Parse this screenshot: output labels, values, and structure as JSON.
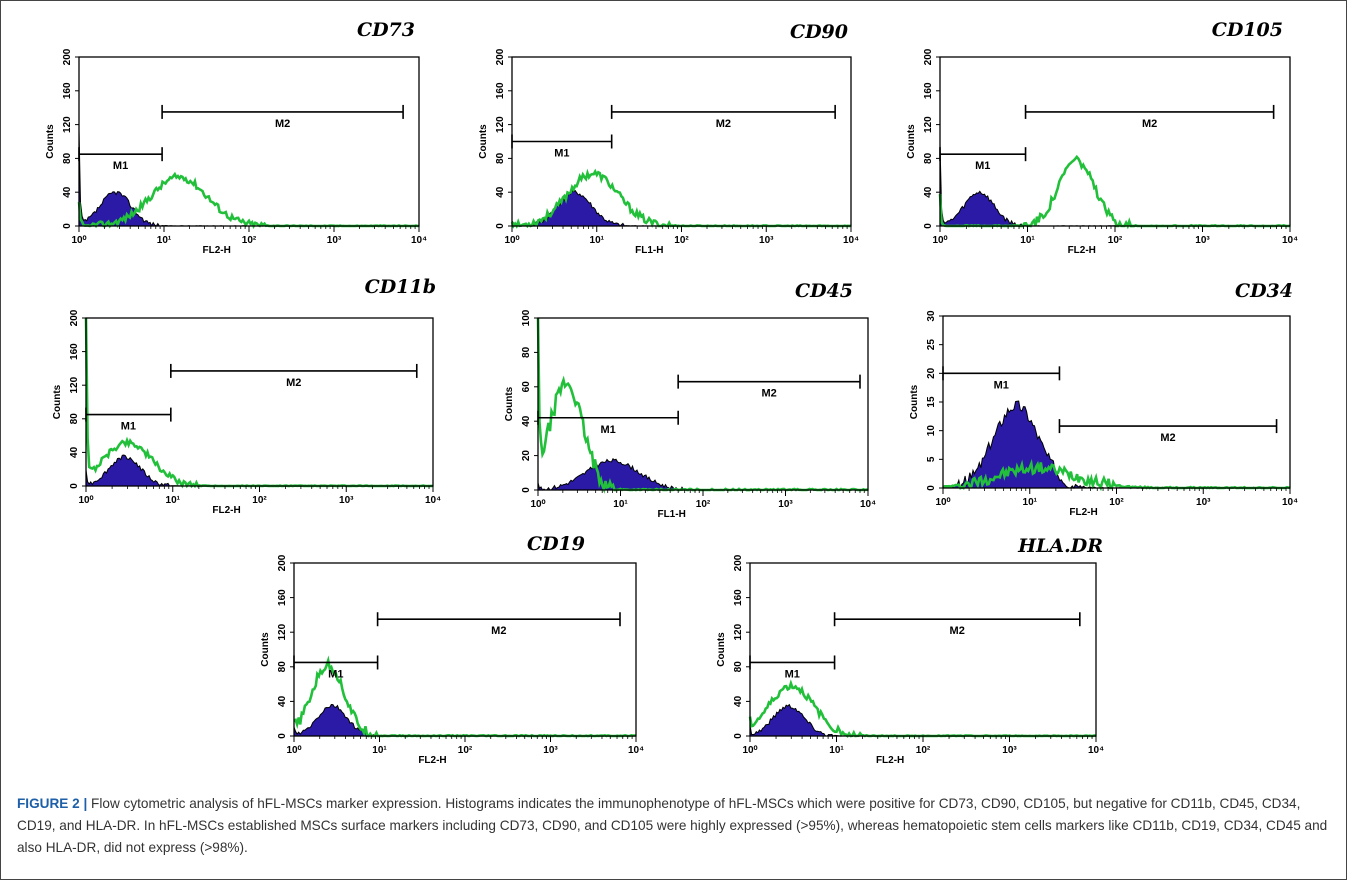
{
  "caption": {
    "label": "FIGURE 2 |",
    "text": " Flow cytometric analysis of hFL-MSCs marker expression. Histograms indicates the immunophenotype of hFL-MSCs which were positive for CD73, CD90, CD105, but negative for CD11b, CD45, CD34, CD19, and HLA-DR. In hFL-MSCs established MSCs surface markers including CD73, CD90, and CD105 were highly expressed (>95%), whereas hematopoietic stem cells markers like CD11b, CD19, CD34, CD45 and also HLA-DR, did not express (>98%)."
  },
  "colors": {
    "control_fill": "#2a1aa6",
    "stain_line": "#22c03a",
    "axis": "#000000"
  },
  "chart_data": [
    {
      "type": "area",
      "title": "CD73",
      "xlabel": "FL2-H",
      "ylabel": "Counts",
      "xscale": "log",
      "xlim": [
        1,
        10000
      ],
      "ylim": [
        0,
        200
      ],
      "x_ticks": [
        "10⁰",
        "10¹",
        "10²",
        "10³",
        "10⁴"
      ],
      "y_ticks": [
        "0",
        "40",
        "80",
        "120",
        "160",
        "200"
      ],
      "gates": [
        {
          "name": "M1",
          "from": 1,
          "to": 9.5,
          "y": 85
        },
        {
          "name": "M2",
          "from": 9.5,
          "to": 6500,
          "y": 135
        }
      ],
      "series": [
        {
          "role": "control",
          "peak_x": 2.7,
          "peak_y": 40,
          "width": 0.18,
          "spike_y": 110
        },
        {
          "role": "stained",
          "peak_x": 15,
          "peak_y": 58,
          "width": 0.33,
          "spike_y": 25
        }
      ]
    },
    {
      "type": "area",
      "title": "CD90",
      "xlabel": "FL1-H",
      "ylabel": "Counts",
      "xscale": "log",
      "xlim": [
        1,
        10000
      ],
      "ylim": [
        0,
        200
      ],
      "x_ticks": [
        "10⁰",
        "10¹",
        "10²",
        "10³",
        "10⁴"
      ],
      "y_ticks": [
        "0",
        "40",
        "80",
        "120",
        "160",
        "200"
      ],
      "gates": [
        {
          "name": "M1",
          "from": 1,
          "to": 15,
          "y": 100
        },
        {
          "name": "M2",
          "from": 15,
          "to": 6500,
          "y": 135
        }
      ],
      "series": [
        {
          "role": "control",
          "peak_x": 5.5,
          "peak_y": 40,
          "width": 0.2,
          "spike_y": 8
        },
        {
          "role": "stained",
          "peak_x": 9,
          "peak_y": 62,
          "width": 0.3,
          "spike_y": 6
        }
      ]
    },
    {
      "type": "area",
      "title": "CD105",
      "xlabel": "FL2-H",
      "ylabel": "Counts",
      "xscale": "log",
      "xlim": [
        1,
        10000
      ],
      "ylim": [
        0,
        200
      ],
      "x_ticks": [
        "10⁰",
        "10¹",
        "10²",
        "10³",
        "10⁴"
      ],
      "y_ticks": [
        "0",
        "40",
        "80",
        "120",
        "160",
        "200"
      ],
      "gates": [
        {
          "name": "M1",
          "from": 1,
          "to": 9.5,
          "y": 85
        },
        {
          "name": "M2",
          "from": 9.5,
          "to": 6500,
          "y": 135
        }
      ],
      "series": [
        {
          "role": "control",
          "peak_x": 2.8,
          "peak_y": 40,
          "width": 0.17,
          "spike_y": 95
        },
        {
          "role": "stained",
          "peak_x": 36,
          "peak_y": 78,
          "width": 0.2,
          "spike_y": 35
        }
      ]
    },
    {
      "type": "area",
      "title": "CD11b",
      "xlabel": "FL2-H",
      "ylabel": "Counts",
      "xscale": "log",
      "xlim": [
        1,
        10000
      ],
      "ylim": [
        0,
        200
      ],
      "x_ticks": [
        "10⁰",
        "10¹",
        "10²",
        "10³",
        "10⁴"
      ],
      "y_ticks": [
        "0",
        "40",
        "80",
        "120",
        "160",
        "200"
      ],
      "gates": [
        {
          "name": "M1",
          "from": 1,
          "to": 9.5,
          "y": 85
        },
        {
          "name": "M2",
          "from": 9.5,
          "to": 6500,
          "y": 137
        }
      ],
      "series": [
        {
          "role": "control",
          "peak_x": 2.8,
          "peak_y": 35,
          "width": 0.18,
          "spike_y": 20
        },
        {
          "role": "stained",
          "peak_x": 3,
          "peak_y": 52,
          "width": 0.28,
          "spike_y": 200
        }
      ]
    },
    {
      "type": "area",
      "title": "CD45",
      "xlabel": "FL1-H",
      "ylabel": "Counts",
      "xscale": "log",
      "xlim": [
        1,
        10000
      ],
      "ylim": [
        0,
        100
      ],
      "x_ticks": [
        "10⁰",
        "10¹",
        "10²",
        "10³",
        "10⁴"
      ],
      "y_ticks": [
        "0",
        "20",
        "40",
        "60",
        "80",
        "100"
      ],
      "gates": [
        {
          "name": "M1",
          "from": 1,
          "to": 50,
          "y": 42
        },
        {
          "name": "M2",
          "from": 50,
          "to": 8000,
          "y": 63
        }
      ],
      "series": [
        {
          "role": "control",
          "peak_x": 8,
          "peak_y": 17,
          "width": 0.32,
          "spike_y": 4
        },
        {
          "role": "stained",
          "peak_x": 2.2,
          "peak_y": 62,
          "width": 0.2,
          "spike_y": 100
        }
      ]
    },
    {
      "type": "area",
      "title": "CD34",
      "xlabel": "FL2-H",
      "ylabel": "Counts",
      "xscale": "log",
      "xlim": [
        1,
        10000
      ],
      "ylim": [
        0,
        30
      ],
      "x_ticks": [
        "10⁰",
        "10¹",
        "10²",
        "10³",
        "10⁴"
      ],
      "y_ticks": [
        "0",
        "5",
        "10",
        "15",
        "20",
        "25",
        "30"
      ],
      "gates": [
        {
          "name": "M1",
          "from": 1,
          "to": 22,
          "y": 20
        },
        {
          "name": "M2",
          "from": 22,
          "to": 7000,
          "y": 10.8
        }
      ],
      "series": [
        {
          "role": "control",
          "peak_x": 7,
          "peak_y": 14.5,
          "width": 0.26,
          "spike_y": 0
        },
        {
          "role": "stained",
          "peak_x": 12,
          "peak_y": 3.5,
          "width": 0.45,
          "spike_y": 0
        }
      ]
    },
    {
      "type": "area",
      "title": "CD19",
      "xlabel": "FL2-H",
      "ylabel": "Counts",
      "xscale": "log",
      "xlim": [
        1,
        10000
      ],
      "ylim": [
        0,
        200
      ],
      "x_ticks": [
        "10⁰",
        "10¹",
        "10²",
        "10³",
        "10⁴"
      ],
      "y_ticks": [
        "0",
        "40",
        "80",
        "120",
        "160",
        "200"
      ],
      "gates": [
        {
          "name": "M1",
          "from": 1,
          "to": 9.5,
          "y": 85
        },
        {
          "name": "M2",
          "from": 9.5,
          "to": 6500,
          "y": 135
        }
      ],
      "series": [
        {
          "role": "control",
          "peak_x": 2.8,
          "peak_y": 35,
          "width": 0.17,
          "spike_y": 10
        },
        {
          "role": "stained",
          "peak_x": 2.5,
          "peak_y": 82,
          "width": 0.19,
          "spike_y": 8
        }
      ]
    },
    {
      "type": "area",
      "title": "HLA.DR",
      "xlabel": "FL2-H",
      "ylabel": "Counts",
      "xscale": "log",
      "xlim": [
        1,
        10000
      ],
      "ylim": [
        0,
        200
      ],
      "x_ticks": [
        "10⁰",
        "10¹",
        "10²",
        "10³",
        "10⁴"
      ],
      "y_ticks": [
        "0",
        "40",
        "80",
        "120",
        "160",
        "200"
      ],
      "gates": [
        {
          "name": "M1",
          "from": 1,
          "to": 9.5,
          "y": 85
        },
        {
          "name": "M2",
          "from": 9.5,
          "to": 6500,
          "y": 135
        }
      ],
      "series": [
        {
          "role": "control",
          "peak_x": 2.8,
          "peak_y": 35,
          "width": 0.18,
          "spike_y": 10
        },
        {
          "role": "stained",
          "peak_x": 3,
          "peak_y": 58,
          "width": 0.26,
          "spike_y": 8
        }
      ]
    }
  ]
}
